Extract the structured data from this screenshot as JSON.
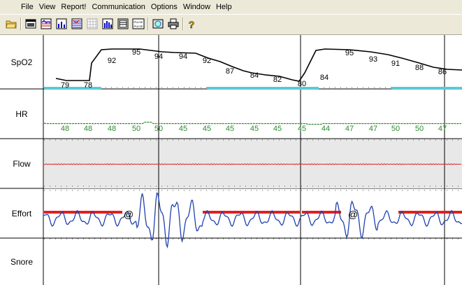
{
  "menu": {
    "file": "File",
    "view": "View",
    "report": "Report!",
    "communication": "Communication",
    "options": "Options",
    "window": "Window",
    "help": "Help"
  },
  "toolbar": {
    "buttons": [
      "open-icon",
      "window-icon",
      "trend-icon",
      "bar-chart-icon",
      "multi-chart-icon",
      "grid-icon",
      "bar-graph-icon",
      "table-icon",
      "pulse-icon",
      "search-icon",
      "print-icon",
      "help-icon"
    ],
    "pulse_label": "PULSE"
  },
  "channels": {
    "spo2": "SpO2",
    "hr": "HR",
    "flow": "Flow",
    "effort": "Effort",
    "snore": "Snore"
  },
  "colors": {
    "spo2_line": "#000000",
    "desat_marker": "#5bc8d8",
    "hr_line": "#2e8b2e",
    "flow_line": "#e02020",
    "flow_bg": "#e8e8e8",
    "effort_line": "#2040b0",
    "effort_marker": "#e02020"
  },
  "spo2_values": [
    "79",
    "78",
    "92",
    "95",
    "94",
    "94",
    "92",
    "87",
    "84",
    "82",
    "80",
    "84",
    "95",
    "93",
    "91",
    "88",
    "86"
  ],
  "hr_values": [
    "48",
    "48",
    "48",
    "50",
    "50",
    "45",
    "45",
    "45",
    "45",
    "45",
    "45",
    "44",
    "47",
    "47",
    "50",
    "50",
    "47"
  ],
  "effort_events": [
    "@",
    "@"
  ]
}
